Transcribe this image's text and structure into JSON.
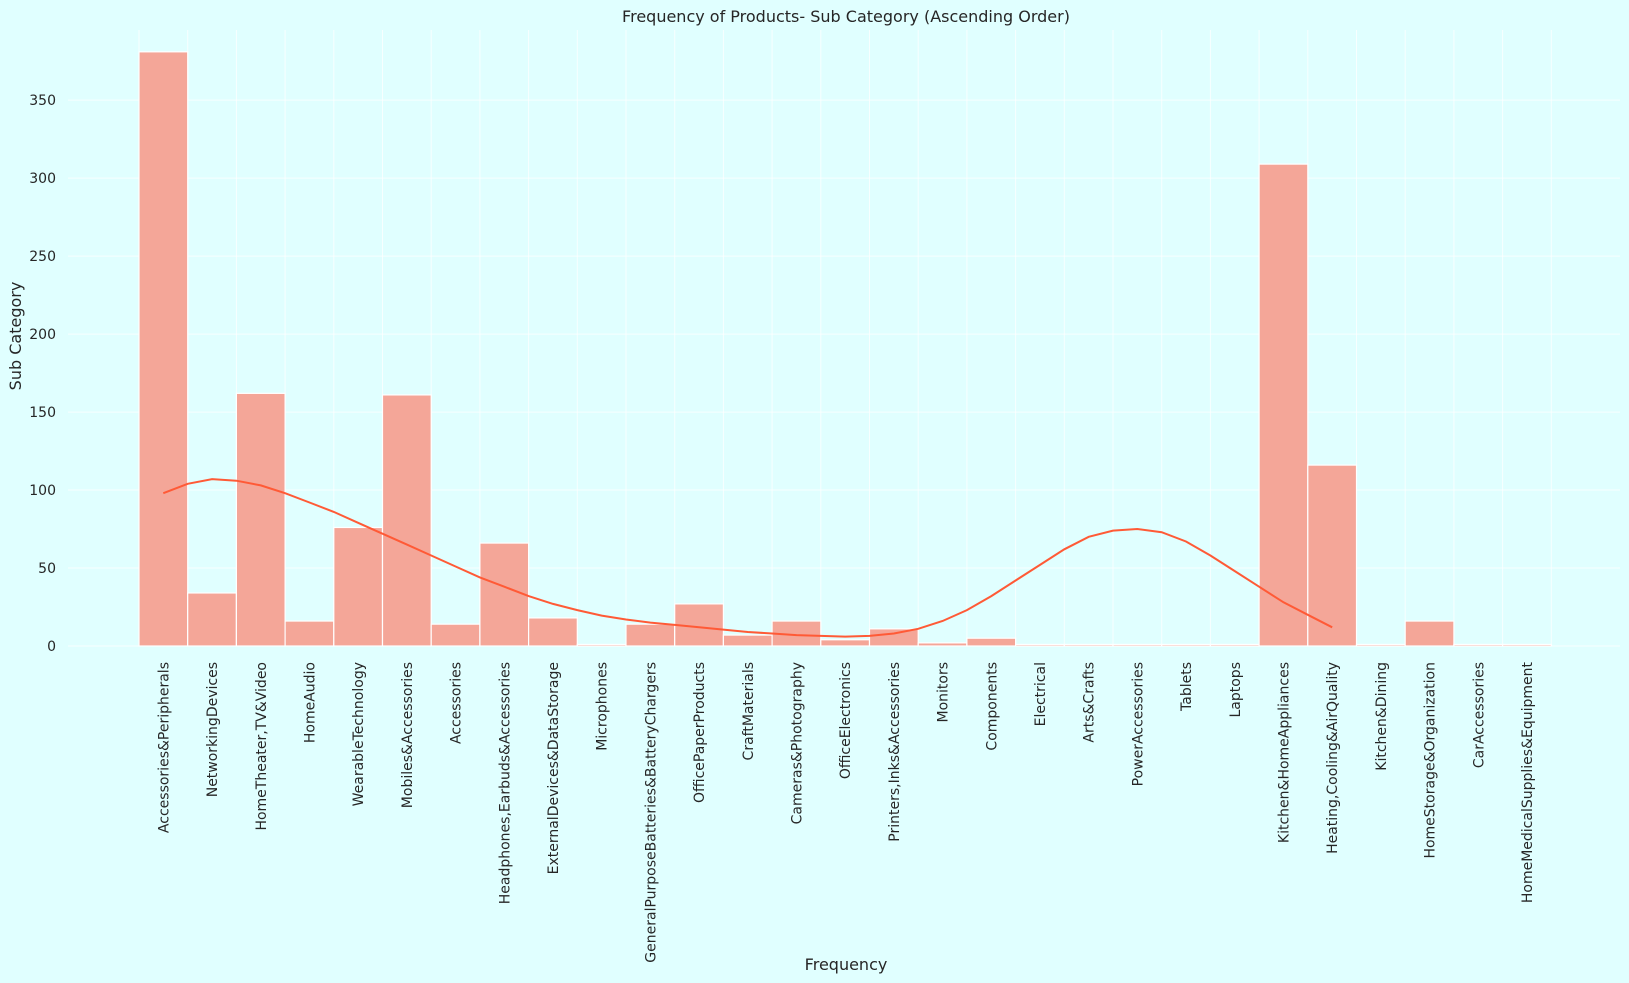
{
  "chart_data": {
    "type": "bar",
    "title": "Frequency of Products- Sub Category (Ascending Order)",
    "xlabel": "Frequency",
    "ylabel": "Sub Category",
    "categories": [
      "Accessories&Peripherals",
      "NetworkingDevices",
      "HomeTheater,TV&Video",
      "HomeAudio",
      "WearableTechnology",
      "Mobiles&Accessories",
      "Accessories",
      "Headphones,Earbuds&Accessories",
      "ExternalDevices&DataStorage",
      "Microphones",
      "GeneralPurposeBatteries&BatteryChargers",
      "OfficePaperProducts",
      "CraftMaterials",
      "Cameras&Photography",
      "OfficeElectronics",
      "Printers,Inks&Accessories",
      "Monitors",
      "Components",
      "Electrical",
      "Arts&Crafts",
      "PowerAccessories",
      "Tablets",
      "Laptops",
      "Kitchen&HomeAppliances",
      "Heating,Cooling&AirQuality",
      "Kitchen&Dining",
      "HomeStorage&Organization",
      "CarAccessories",
      "HomeMedicalSupplies&Equipment"
    ],
    "values": [
      381,
      34,
      162,
      16,
      76,
      161,
      14,
      66,
      18,
      1,
      14,
      27,
      7,
      16,
      4,
      11,
      2,
      5,
      1,
      1,
      1,
      1,
      1,
      309,
      116,
      1,
      16,
      1,
      1
    ],
    "kde": {
      "points": [
        [
          0,
          98
        ],
        [
          0.5,
          104
        ],
        [
          1,
          107
        ],
        [
          1.5,
          106
        ],
        [
          2,
          103
        ],
        [
          2.5,
          98
        ],
        [
          3,
          92
        ],
        [
          3.5,
          86
        ],
        [
          4,
          79
        ],
        [
          4.5,
          72
        ],
        [
          5,
          65
        ],
        [
          5.5,
          58
        ],
        [
          6,
          51
        ],
        [
          6.5,
          44
        ],
        [
          7,
          38
        ],
        [
          7.5,
          32
        ],
        [
          8,
          27
        ],
        [
          8.5,
          23
        ],
        [
          9,
          19.5
        ],
        [
          9.5,
          17
        ],
        [
          10,
          15
        ],
        [
          10.5,
          13.5
        ],
        [
          11,
          12
        ],
        [
          11.5,
          10.5
        ],
        [
          12,
          9
        ],
        [
          12.5,
          8
        ],
        [
          13,
          7
        ],
        [
          13.5,
          6.5
        ],
        [
          14,
          6
        ],
        [
          14.5,
          6.5
        ],
        [
          15,
          8
        ],
        [
          15.5,
          11
        ],
        [
          16,
          16
        ],
        [
          16.5,
          23
        ],
        [
          17,
          32
        ],
        [
          17.5,
          42
        ],
        [
          18,
          52
        ],
        [
          18.5,
          62
        ],
        [
          19,
          70
        ],
        [
          19.5,
          74
        ],
        [
          20,
          75
        ],
        [
          20.5,
          73
        ],
        [
          21,
          67
        ],
        [
          21.5,
          58
        ],
        [
          22,
          48
        ],
        [
          22.5,
          38
        ],
        [
          23,
          28
        ],
        [
          23.5,
          20
        ],
        [
          24,
          12
        ]
      ]
    },
    "ylim": [
      0,
      395
    ],
    "yticks": [
      0,
      50,
      100,
      150,
      200,
      250,
      300,
      350
    ],
    "grid": true,
    "colors": {
      "background": "#e0ffff",
      "bar_fill": "#f4a698",
      "bar_edge": "#ffffff",
      "kde_line": "#ff5a36",
      "grid": "#ffffff"
    }
  }
}
